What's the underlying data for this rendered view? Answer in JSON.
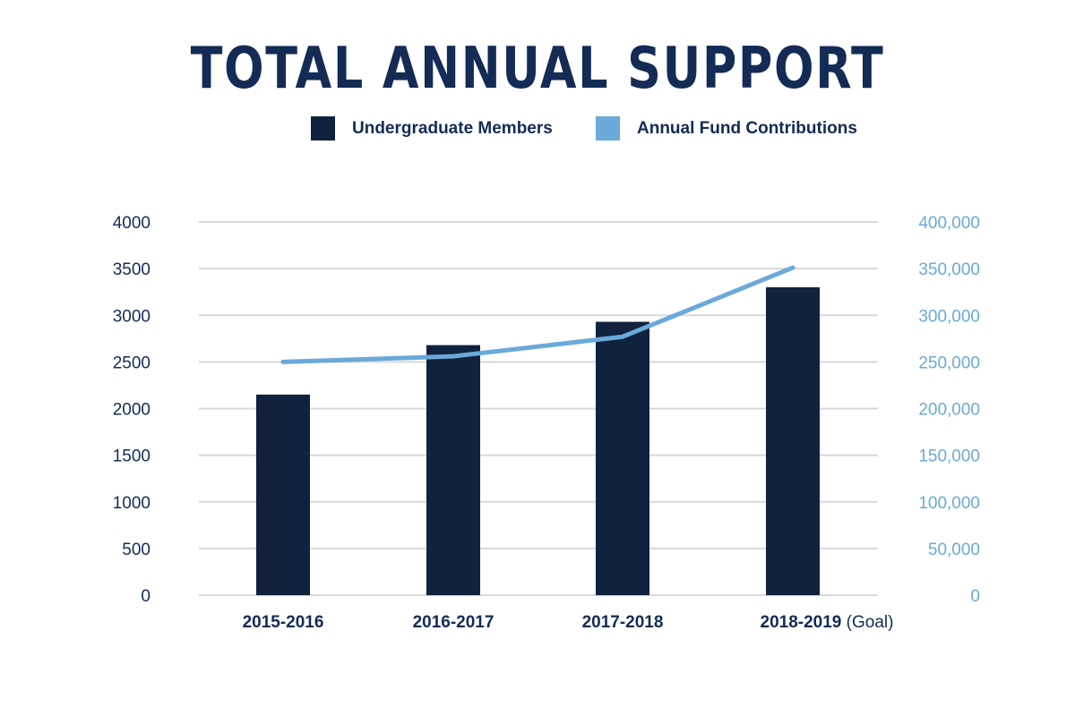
{
  "colors": {
    "bar": "#11223f",
    "line": "#6aa9d9",
    "grid": "#d8d8d8",
    "title": "#142b55"
  },
  "chart_data": {
    "type": "bar",
    "title": "TOTAL ANNUAL SUPPORT",
    "categories": [
      "2015-2016",
      "2016-2017",
      "2017-2018",
      "2018-2019"
    ],
    "category_suffixes": [
      "",
      "",
      "",
      "(Goal)"
    ],
    "series": [
      {
        "name": "Undergraduate Members",
        "type": "bar",
        "axis": "left",
        "values": [
          2150,
          2680,
          2930,
          3300
        ]
      },
      {
        "name": "Annual Fund Contributions",
        "type": "line",
        "axis": "right",
        "values": [
          250000,
          256000,
          277000,
          351000
        ]
      }
    ],
    "ylim_left": [
      0,
      4000
    ],
    "ylim_right": [
      0,
      400000
    ],
    "left_ticks": [
      "0",
      "500",
      "1000",
      "1500",
      "2000",
      "2500",
      "3000",
      "3500",
      "4000"
    ],
    "right_ticks": [
      "0",
      "50,000",
      "100,000",
      "150,000",
      "200,000",
      "250,000",
      "300,000",
      "350,000",
      "400,000"
    ],
    "grid": true,
    "legend_position": "top-center"
  }
}
